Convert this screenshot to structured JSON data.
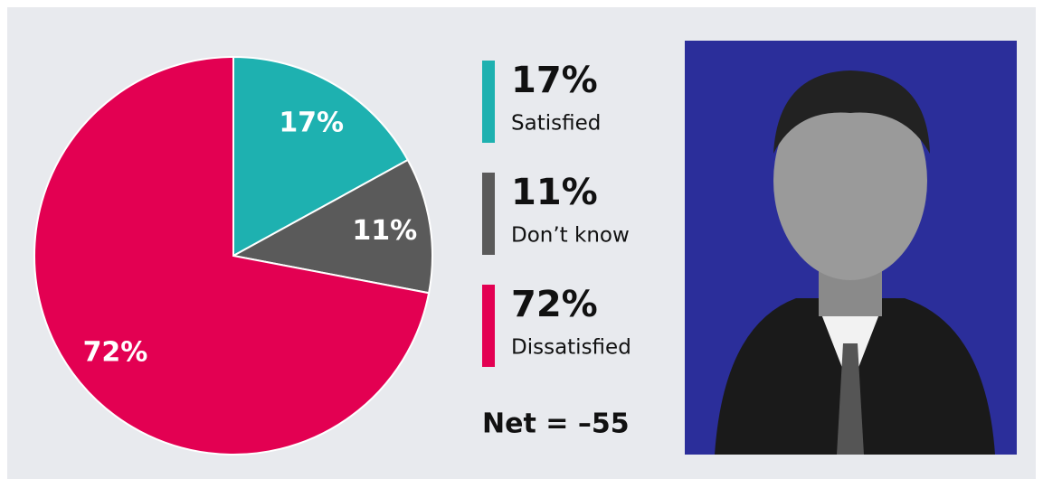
{
  "chart_data": {
    "type": "pie",
    "categories": [
      "Satisfied",
      "Don’t know",
      "Dissatisfied"
    ],
    "values": [
      17,
      11,
      72
    ],
    "value_labels": [
      "17%",
      "11%",
      "72%"
    ],
    "colors": [
      "#1eb1b0",
      "#5a5a5a",
      "#e30052"
    ],
    "annotation": "Net = –55"
  }
}
